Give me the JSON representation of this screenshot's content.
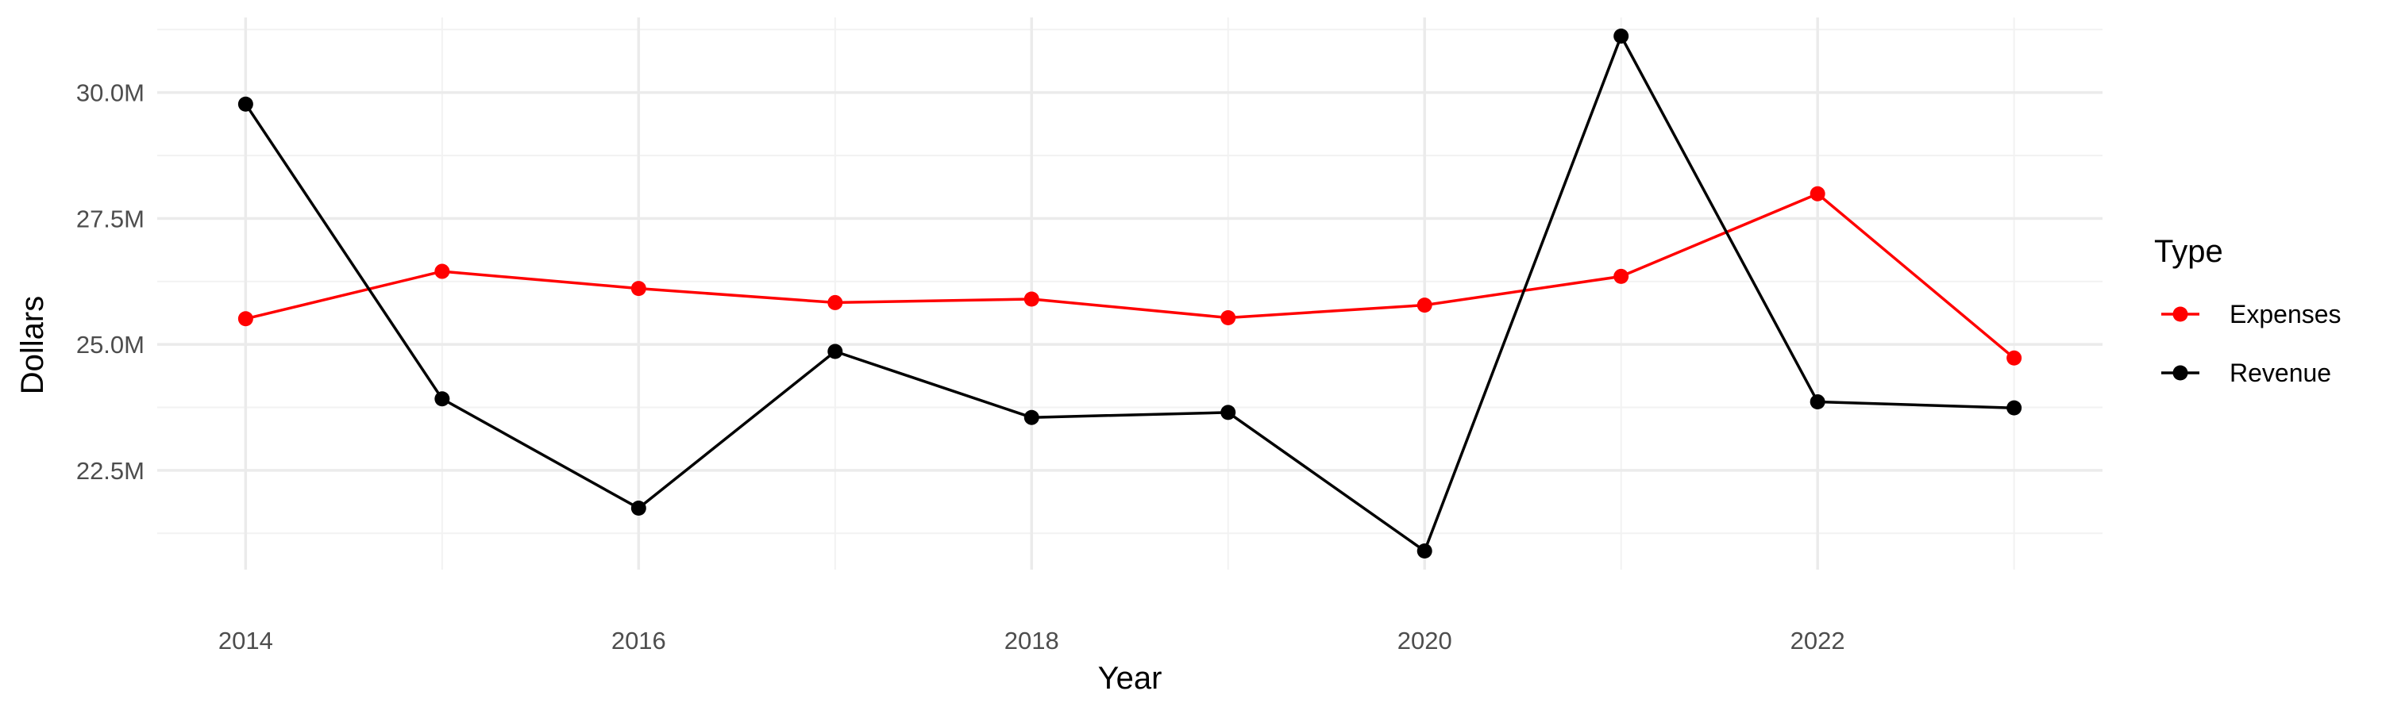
{
  "chart_data": {
    "type": "line",
    "title": "",
    "xlabel": "Year",
    "ylabel": "Dollars",
    "x": [
      2014,
      2015,
      2016,
      2017,
      2018,
      2019,
      2020,
      2021,
      2022,
      2023
    ],
    "x_ticks": [
      2014,
      2016,
      2018,
      2020,
      2022
    ],
    "x_tick_labels": [
      "2014",
      "2016",
      "2018",
      "2020",
      "2022"
    ],
    "xlim": [
      2013.55,
      2023.45
    ],
    "y_ticks": [
      22500000,
      25000000,
      27500000,
      30000000
    ],
    "y_tick_labels": [
      "22.5M",
      "25.0M",
      "27.5M",
      "30.0M"
    ],
    "ylim": [
      20530000,
      31490000
    ],
    "grid": true,
    "legend": {
      "title": "Type",
      "position": "right"
    },
    "series": [
      {
        "name": "Expenses",
        "color": "#ff0000",
        "values": [
          25510000,
          26450000,
          26110000,
          25830000,
          25900000,
          25530000,
          25780000,
          26350000,
          27990000,
          24730000
        ]
      },
      {
        "name": "Revenue",
        "color": "#000000",
        "values": [
          29770000,
          23920000,
          21750000,
          24860000,
          23550000,
          23650000,
          20900000,
          31120000,
          23860000,
          23740000
        ]
      }
    ]
  }
}
